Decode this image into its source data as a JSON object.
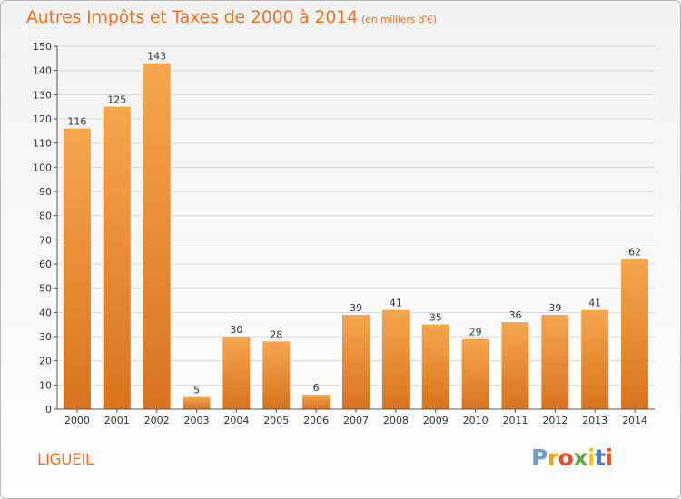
{
  "header": {
    "title": "Autres Impôts et Taxes de 2000 à 2014",
    "unit": "(en milliers d'€)"
  },
  "footer": {
    "place": "LIGUEIL",
    "logo_letters": [
      "P",
      "r",
      "o",
      "x",
      "i",
      "t",
      "i"
    ],
    "logo_colors": [
      "#6c9ecf",
      "#f0a21f",
      "#df4f2b",
      "#67a54c",
      "#eec41c",
      "#4c7fc0",
      "#e05a30"
    ]
  },
  "colors": {
    "bar_light": "#f6a64e",
    "bar_dark": "#d8731e",
    "axis": "#555555",
    "grid": "#d6d6d6",
    "text": "#333333"
  },
  "chart_data": {
    "type": "bar",
    "title": "Autres Impôts et Taxes de 2000 à 2014",
    "subtitle": "(en milliers d'€)",
    "categories": [
      "2000",
      "2001",
      "2002",
      "2003",
      "2004",
      "2005",
      "2006",
      "2007",
      "2008",
      "2009",
      "2010",
      "2011",
      "2012",
      "2013",
      "2014"
    ],
    "values": [
      116,
      125,
      143,
      5,
      30,
      28,
      6,
      39,
      41,
      35,
      29,
      36,
      39,
      41,
      62
    ],
    "ylim": [
      0,
      150
    ],
    "yticks": [
      0,
      10,
      20,
      30,
      40,
      50,
      60,
      70,
      80,
      90,
      100,
      110,
      120,
      130,
      140,
      150
    ],
    "grid": true
  }
}
